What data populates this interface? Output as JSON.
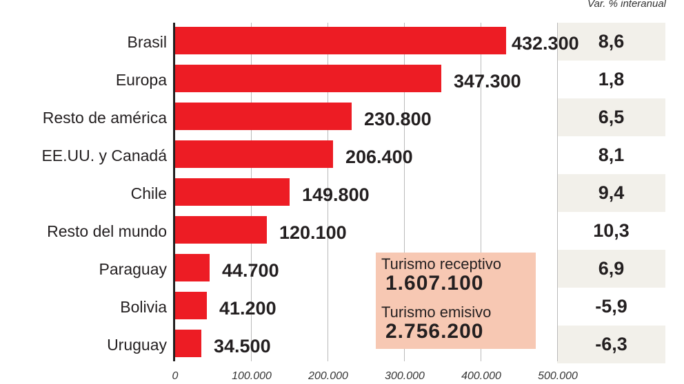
{
  "chart_data": {
    "type": "bar",
    "orientation": "horizontal",
    "title": "",
    "xlabel": "",
    "ylabel": "",
    "xlim": [
      0,
      500000
    ],
    "x_ticks": [
      "0",
      "100.000",
      "200.000",
      "300.000",
      "400.000",
      "500.000"
    ],
    "grid": true,
    "categories": [
      "Brasil",
      "Europa",
      "Resto de américa",
      "EE.UU. y Canadá",
      "Chile",
      "Resto del mundo",
      "Paraguay",
      "Bolivia",
      "Uruguay"
    ],
    "values": [
      432300,
      347300,
      230800,
      206400,
      149800,
      120100,
      44700,
      41200,
      34500
    ],
    "value_labels": [
      "432.300",
      "347.300",
      "230.800",
      "206.400",
      "149.800",
      "120.100",
      "44.700",
      "41.200",
      "34.500"
    ],
    "secondary_column": {
      "header": "Var. % interanual",
      "values": [
        8.6,
        1.8,
        6.5,
        8.1,
        9.4,
        10.3,
        6.9,
        -5.9,
        -6.3
      ],
      "labels": [
        "8,6",
        "1,8",
        "6,5",
        "8,1",
        "9,4",
        "10,3",
        "6,9",
        "-5,9",
        "-6,3"
      ]
    },
    "annotations": [
      {
        "label": "Turismo receptivo",
        "value": "1.607.100"
      },
      {
        "label": "Turismo emisivo",
        "value": "2.756.200"
      }
    ],
    "colors": {
      "bar": "#ed1c24",
      "band": "#f2f0ea",
      "summary_box": "#f7c8b3"
    }
  },
  "header": {
    "var_label": "Var. % interanual"
  },
  "summary": {
    "receptivo_label": "Turismo receptivo",
    "receptivo_value": "1.607.100",
    "emisivo_label": "Turismo emisivo",
    "emisivo_value": "2.756.200"
  }
}
